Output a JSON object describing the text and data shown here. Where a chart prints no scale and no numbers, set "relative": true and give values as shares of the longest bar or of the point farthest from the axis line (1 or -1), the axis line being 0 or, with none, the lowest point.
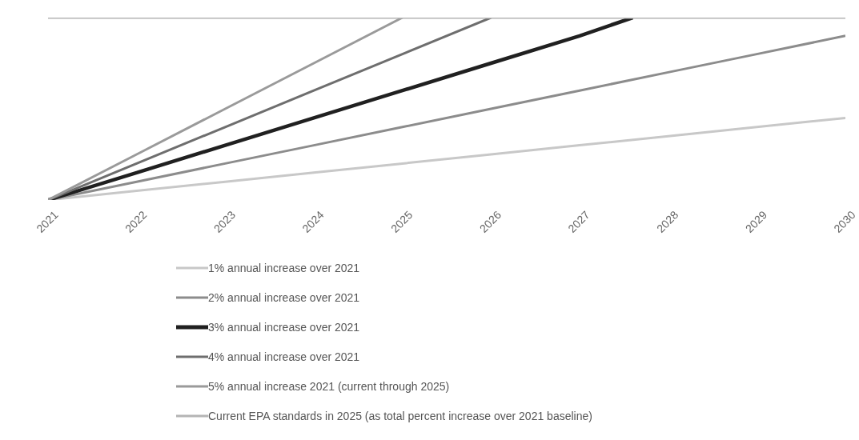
{
  "chart_data": {
    "type": "line",
    "relative": true,
    "xlim": [
      2021,
      2030
    ],
    "xticks": [
      2021,
      2022,
      2023,
      2024,
      2025,
      2026,
      2027,
      2028,
      2029,
      2030
    ],
    "legend": "bottom",
    "marker": "none",
    "line_style": "solid",
    "series": [
      {
        "name": "1% annual increase over 2021",
        "color": "#c8c8c8",
        "x": [
          2021,
          2022,
          2023,
          2024,
          2025,
          2026,
          2027,
          2028,
          2029,
          2030
        ],
        "values": [
          0,
          0.05,
          0.1,
          0.15,
          0.2,
          0.25,
          0.3,
          0.35,
          0.4,
          0.45
        ]
      },
      {
        "name": "2% annual increase over 2021",
        "color": "#8c8c8c",
        "x": [
          2021,
          2022,
          2023,
          2024,
          2025,
          2026,
          2027,
          2028,
          2029,
          2030
        ],
        "values": [
          0,
          0.1,
          0.2,
          0.3,
          0.4,
          0.5,
          0.6,
          0.7,
          0.8,
          0.9
        ]
      },
      {
        "name": "3% annual increase over 2021",
        "color": "#202020",
        "x": [
          2021,
          2022,
          2023,
          2024,
          2025,
          2026,
          2027,
          2027.6
        ],
        "values": [
          0,
          0.15,
          0.3,
          0.45,
          0.6,
          0.75,
          0.9,
          1
        ]
      },
      {
        "name": "4% annual increase over 2021",
        "color": "#6e6e6e",
        "x": [
          2021,
          2022,
          2023,
          2024,
          2025,
          2026
        ],
        "values": [
          0,
          0.2,
          0.4,
          0.6,
          0.8,
          1
        ]
      },
      {
        "name": "5% annual increase 2021 (current through 2025)",
        "color": "#9a9a9a",
        "x": [
          2021,
          2022,
          2023,
          2024,
          2025
        ],
        "values": [
          0,
          0.25,
          0.5,
          0.75,
          1
        ]
      },
      {
        "name": "Current EPA standards in 2025 (as total percent increase over 2021 baseline)",
        "color": "#b4b4b4",
        "x": [
          2021,
          2030
        ],
        "values": [
          1,
          1
        ]
      }
    ]
  }
}
